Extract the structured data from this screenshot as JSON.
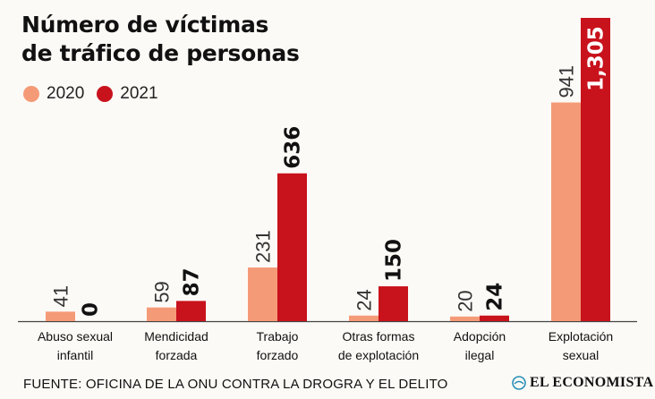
{
  "header": {
    "title_line1": "Número de víctimas",
    "title_line2": "de tráfico de personas"
  },
  "colors": {
    "series_2020": "#f59a77",
    "series_2021": "#c8121c",
    "axis": "#444444",
    "background": "#fcfaf6"
  },
  "chart_data": {
    "type": "bar",
    "categories": [
      [
        "Abuso sexual",
        "infantil"
      ],
      [
        "Mendicidad",
        "forzada"
      ],
      [
        "Trabajo",
        "forzado"
      ],
      [
        "Otras formas",
        "de explotación"
      ],
      [
        "Adopción",
        "ilegal"
      ],
      [
        "Explotación",
        "sexual"
      ]
    ],
    "series": [
      {
        "name": "2020",
        "values": [
          41,
          59,
          231,
          24,
          20,
          941
        ],
        "labels": [
          "41",
          "59",
          "231",
          "24",
          "20",
          "941"
        ]
      },
      {
        "name": "2021",
        "values": [
          0,
          87,
          636,
          150,
          24,
          1305
        ],
        "labels": [
          "0",
          "87",
          "636",
          "150",
          "24",
          "1,305"
        ]
      }
    ],
    "legend_position": "top-left",
    "grid": false,
    "ylim": [
      0,
      1305
    ]
  },
  "footer": {
    "source": "FUENTE: OFICINA DE LA ONU CONTRA LA DROGRA Y EL DELITO",
    "brand": "EL ECONOMISTA"
  }
}
